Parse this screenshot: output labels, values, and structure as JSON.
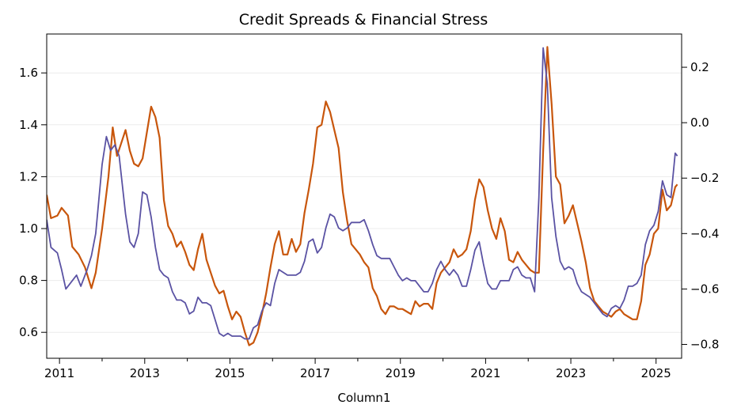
{
  "chart_data": {
    "type": "line",
    "title": "Credit Spreads & Financial Stress",
    "xlabel": "Column1",
    "ylabel": "",
    "y2label": "",
    "xlim": [
      2010.7,
      2025.6
    ],
    "ylim": [
      0.5,
      1.75
    ],
    "y2lim": [
      -0.85,
      0.32
    ],
    "x_ticks": [
      2011,
      2013,
      2015,
      2017,
      2019,
      2021,
      2023,
      2025
    ],
    "x_tick_labels": [
      "2011",
      "2013",
      "2015",
      "2017",
      "2019",
      "2021",
      "2023",
      "2025"
    ],
    "y_ticks": [
      0.6,
      0.8,
      1.0,
      1.2,
      1.4,
      1.6
    ],
    "y_tick_labels": [
      "0.6",
      "0.8",
      "1.0",
      "1.2",
      "1.4",
      "1.6"
    ],
    "y2_ticks": [
      -0.8,
      -0.6,
      -0.4,
      -0.2,
      0.0,
      0.2
    ],
    "y2_tick_labels": [
      "−0.8",
      "−0.6",
      "−0.4",
      "−0.2",
      "0.0",
      "0.2"
    ],
    "grid": "horizontal",
    "legend": "none",
    "series": [
      {
        "axis": "left",
        "color": "#c8560c",
        "points": [
          [
            2010.7,
            1.13
          ],
          [
            2010.8,
            1.04
          ],
          [
            2010.95,
            1.05
          ],
          [
            2011.05,
            1.08
          ],
          [
            2011.2,
            1.05
          ],
          [
            2011.3,
            0.93
          ],
          [
            2011.45,
            0.9
          ],
          [
            2011.6,
            0.85
          ],
          [
            2011.75,
            0.77
          ],
          [
            2011.85,
            0.83
          ],
          [
            2012.0,
            1.0
          ],
          [
            2012.15,
            1.2
          ],
          [
            2012.25,
            1.39
          ],
          [
            2012.35,
            1.28
          ],
          [
            2012.45,
            1.33
          ],
          [
            2012.55,
            1.38
          ],
          [
            2012.65,
            1.3
          ],
          [
            2012.75,
            1.25
          ],
          [
            2012.85,
            1.24
          ],
          [
            2012.95,
            1.27
          ],
          [
            2013.05,
            1.37
          ],
          [
            2013.15,
            1.47
          ],
          [
            2013.25,
            1.43
          ],
          [
            2013.35,
            1.35
          ],
          [
            2013.45,
            1.11
          ],
          [
            2013.55,
            1.01
          ],
          [
            2013.65,
            0.98
          ],
          [
            2013.75,
            0.93
          ],
          [
            2013.85,
            0.95
          ],
          [
            2013.95,
            0.91
          ],
          [
            2014.05,
            0.86
          ],
          [
            2014.15,
            0.84
          ],
          [
            2014.25,
            0.92
          ],
          [
            2014.35,
            0.98
          ],
          [
            2014.45,
            0.88
          ],
          [
            2014.55,
            0.83
          ],
          [
            2014.65,
            0.78
          ],
          [
            2014.75,
            0.75
          ],
          [
            2014.85,
            0.76
          ],
          [
            2014.95,
            0.7
          ],
          [
            2015.05,
            0.65
          ],
          [
            2015.15,
            0.68
          ],
          [
            2015.25,
            0.66
          ],
          [
            2015.35,
            0.6
          ],
          [
            2015.45,
            0.55
          ],
          [
            2015.55,
            0.56
          ],
          [
            2015.65,
            0.6
          ],
          [
            2015.75,
            0.67
          ],
          [
            2015.85,
            0.75
          ],
          [
            2015.95,
            0.85
          ],
          [
            2016.05,
            0.94
          ],
          [
            2016.15,
            0.99
          ],
          [
            2016.25,
            0.9
          ],
          [
            2016.35,
            0.9
          ],
          [
            2016.45,
            0.96
          ],
          [
            2016.55,
            0.91
          ],
          [
            2016.65,
            0.94
          ],
          [
            2016.75,
            1.06
          ],
          [
            2016.85,
            1.15
          ],
          [
            2016.95,
            1.25
          ],
          [
            2017.05,
            1.39
          ],
          [
            2017.15,
            1.4
          ],
          [
            2017.25,
            1.49
          ],
          [
            2017.35,
            1.45
          ],
          [
            2017.45,
            1.38
          ],
          [
            2017.55,
            1.31
          ],
          [
            2017.65,
            1.14
          ],
          [
            2017.75,
            1.03
          ],
          [
            2017.85,
            0.94
          ],
          [
            2017.95,
            0.92
          ],
          [
            2018.05,
            0.9
          ],
          [
            2018.15,
            0.87
          ],
          [
            2018.25,
            0.85
          ],
          [
            2018.35,
            0.77
          ],
          [
            2018.45,
            0.74
          ],
          [
            2018.55,
            0.69
          ],
          [
            2018.65,
            0.67
          ],
          [
            2018.75,
            0.7
          ],
          [
            2018.85,
            0.7
          ],
          [
            2018.95,
            0.69
          ],
          [
            2019.05,
            0.69
          ],
          [
            2019.15,
            0.68
          ],
          [
            2019.25,
            0.67
          ],
          [
            2019.35,
            0.72
          ],
          [
            2019.45,
            0.7
          ],
          [
            2019.55,
            0.71
          ],
          [
            2019.65,
            0.71
          ],
          [
            2019.75,
            0.69
          ],
          [
            2019.85,
            0.79
          ],
          [
            2019.95,
            0.83
          ],
          [
            2020.05,
            0.85
          ],
          [
            2020.15,
            0.87
          ],
          [
            2020.25,
            0.92
          ],
          [
            2020.35,
            0.89
          ],
          [
            2020.45,
            0.9
          ],
          [
            2020.55,
            0.92
          ],
          [
            2020.65,
            0.99
          ],
          [
            2020.75,
            1.11
          ],
          [
            2020.85,
            1.19
          ],
          [
            2020.95,
            1.16
          ],
          [
            2021.05,
            1.07
          ],
          [
            2021.15,
            1.0
          ],
          [
            2021.25,
            0.96
          ],
          [
            2021.35,
            1.04
          ],
          [
            2021.45,
            0.99
          ],
          [
            2021.55,
            0.88
          ],
          [
            2021.65,
            0.87
          ],
          [
            2021.75,
            0.91
          ],
          [
            2021.85,
            0.88
          ],
          [
            2021.95,
            0.86
          ],
          [
            2022.05,
            0.84
          ],
          [
            2022.15,
            0.83
          ],
          [
            2022.25,
            0.83
          ],
          [
            2022.35,
            1.3
          ],
          [
            2022.45,
            1.7
          ],
          [
            2022.55,
            1.48
          ],
          [
            2022.65,
            1.2
          ],
          [
            2022.75,
            1.17
          ],
          [
            2022.85,
            1.02
          ],
          [
            2022.95,
            1.05
          ],
          [
            2023.05,
            1.09
          ],
          [
            2023.15,
            1.02
          ],
          [
            2023.25,
            0.95
          ],
          [
            2023.35,
            0.87
          ],
          [
            2023.45,
            0.77
          ],
          [
            2023.55,
            0.72
          ],
          [
            2023.65,
            0.7
          ],
          [
            2023.75,
            0.68
          ],
          [
            2023.85,
            0.67
          ],
          [
            2023.95,
            0.66
          ],
          [
            2024.05,
            0.68
          ],
          [
            2024.15,
            0.69
          ],
          [
            2024.25,
            0.67
          ],
          [
            2024.35,
            0.66
          ],
          [
            2024.45,
            0.65
          ],
          [
            2024.55,
            0.65
          ],
          [
            2024.65,
            0.72
          ],
          [
            2024.75,
            0.86
          ],
          [
            2024.85,
            0.9
          ],
          [
            2024.95,
            0.98
          ],
          [
            2025.05,
            1.0
          ],
          [
            2025.15,
            1.15
          ],
          [
            2025.25,
            1.07
          ],
          [
            2025.35,
            1.09
          ],
          [
            2025.45,
            1.16
          ],
          [
            2025.5,
            1.17
          ]
        ]
      },
      {
        "axis": "right",
        "color": "#5a52a3",
        "points": [
          [
            2010.7,
            -0.35
          ],
          [
            2010.8,
            -0.45
          ],
          [
            2010.95,
            -0.47
          ],
          [
            2011.05,
            -0.53
          ],
          [
            2011.15,
            -0.6
          ],
          [
            2011.3,
            -0.57
          ],
          [
            2011.4,
            -0.55
          ],
          [
            2011.5,
            -0.59
          ],
          [
            2011.65,
            -0.53
          ],
          [
            2011.75,
            -0.48
          ],
          [
            2011.85,
            -0.4
          ],
          [
            2012.0,
            -0.15
          ],
          [
            2012.1,
            -0.05
          ],
          [
            2012.2,
            -0.1
          ],
          [
            2012.3,
            -0.08
          ],
          [
            2012.4,
            -0.12
          ],
          [
            2012.55,
            -0.33
          ],
          [
            2012.65,
            -0.43
          ],
          [
            2012.75,
            -0.45
          ],
          [
            2012.85,
            -0.4
          ],
          [
            2012.95,
            -0.25
          ],
          [
            2013.05,
            -0.26
          ],
          [
            2013.15,
            -0.34
          ],
          [
            2013.25,
            -0.45
          ],
          [
            2013.35,
            -0.53
          ],
          [
            2013.45,
            -0.55
          ],
          [
            2013.55,
            -0.56
          ],
          [
            2013.65,
            -0.61
          ],
          [
            2013.75,
            -0.64
          ],
          [
            2013.85,
            -0.64
          ],
          [
            2013.95,
            -0.65
          ],
          [
            2014.05,
            -0.69
          ],
          [
            2014.15,
            -0.68
          ],
          [
            2014.25,
            -0.63
          ],
          [
            2014.35,
            -0.65
          ],
          [
            2014.45,
            -0.65
          ],
          [
            2014.55,
            -0.66
          ],
          [
            2014.65,
            -0.71
          ],
          [
            2014.75,
            -0.76
          ],
          [
            2014.85,
            -0.77
          ],
          [
            2014.95,
            -0.76
          ],
          [
            2015.05,
            -0.77
          ],
          [
            2015.15,
            -0.77
          ],
          [
            2015.25,
            -0.77
          ],
          [
            2015.35,
            -0.78
          ],
          [
            2015.45,
            -0.78
          ],
          [
            2015.55,
            -0.74
          ],
          [
            2015.65,
            -0.73
          ],
          [
            2015.75,
            -0.68
          ],
          [
            2015.85,
            -0.65
          ],
          [
            2015.95,
            -0.66
          ],
          [
            2016.05,
            -0.58
          ],
          [
            2016.15,
            -0.53
          ],
          [
            2016.25,
            -0.54
          ],
          [
            2016.35,
            -0.55
          ],
          [
            2016.45,
            -0.55
          ],
          [
            2016.55,
            -0.55
          ],
          [
            2016.65,
            -0.54
          ],
          [
            2016.75,
            -0.5
          ],
          [
            2016.85,
            -0.43
          ],
          [
            2016.95,
            -0.42
          ],
          [
            2017.05,
            -0.47
          ],
          [
            2017.15,
            -0.45
          ],
          [
            2017.25,
            -0.38
          ],
          [
            2017.35,
            -0.33
          ],
          [
            2017.45,
            -0.34
          ],
          [
            2017.55,
            -0.38
          ],
          [
            2017.65,
            -0.39
          ],
          [
            2017.75,
            -0.38
          ],
          [
            2017.85,
            -0.36
          ],
          [
            2017.95,
            -0.36
          ],
          [
            2018.05,
            -0.36
          ],
          [
            2018.15,
            -0.35
          ],
          [
            2018.25,
            -0.39
          ],
          [
            2018.35,
            -0.44
          ],
          [
            2018.45,
            -0.48
          ],
          [
            2018.55,
            -0.49
          ],
          [
            2018.65,
            -0.49
          ],
          [
            2018.75,
            -0.49
          ],
          [
            2018.85,
            -0.52
          ],
          [
            2018.95,
            -0.55
          ],
          [
            2019.05,
            -0.57
          ],
          [
            2019.15,
            -0.56
          ],
          [
            2019.25,
            -0.57
          ],
          [
            2019.35,
            -0.57
          ],
          [
            2019.45,
            -0.59
          ],
          [
            2019.55,
            -0.61
          ],
          [
            2019.65,
            -0.61
          ],
          [
            2019.75,
            -0.58
          ],
          [
            2019.85,
            -0.53
          ],
          [
            2019.95,
            -0.5
          ],
          [
            2020.05,
            -0.53
          ],
          [
            2020.15,
            -0.55
          ],
          [
            2020.25,
            -0.53
          ],
          [
            2020.35,
            -0.55
          ],
          [
            2020.45,
            -0.59
          ],
          [
            2020.55,
            -0.59
          ],
          [
            2020.65,
            -0.53
          ],
          [
            2020.75,
            -0.46
          ],
          [
            2020.85,
            -0.43
          ],
          [
            2020.95,
            -0.51
          ],
          [
            2021.05,
            -0.58
          ],
          [
            2021.15,
            -0.6
          ],
          [
            2021.25,
            -0.6
          ],
          [
            2021.35,
            -0.57
          ],
          [
            2021.45,
            -0.57
          ],
          [
            2021.55,
            -0.57
          ],
          [
            2021.65,
            -0.53
          ],
          [
            2021.75,
            -0.52
          ],
          [
            2021.85,
            -0.55
          ],
          [
            2021.95,
            -0.56
          ],
          [
            2022.05,
            -0.56
          ],
          [
            2022.15,
            -0.61
          ],
          [
            2022.25,
            -0.27
          ],
          [
            2022.35,
            0.27
          ],
          [
            2022.45,
            0.14
          ],
          [
            2022.55,
            -0.27
          ],
          [
            2022.65,
            -0.41
          ],
          [
            2022.75,
            -0.5
          ],
          [
            2022.85,
            -0.53
          ],
          [
            2022.95,
            -0.52
          ],
          [
            2023.05,
            -0.53
          ],
          [
            2023.15,
            -0.58
          ],
          [
            2023.25,
            -0.61
          ],
          [
            2023.35,
            -0.62
          ],
          [
            2023.45,
            -0.63
          ],
          [
            2023.55,
            -0.65
          ],
          [
            2023.65,
            -0.67
          ],
          [
            2023.75,
            -0.69
          ],
          [
            2023.85,
            -0.7
          ],
          [
            2023.95,
            -0.67
          ],
          [
            2024.05,
            -0.66
          ],
          [
            2024.15,
            -0.67
          ],
          [
            2024.25,
            -0.64
          ],
          [
            2024.35,
            -0.59
          ],
          [
            2024.45,
            -0.59
          ],
          [
            2024.55,
            -0.58
          ],
          [
            2024.65,
            -0.55
          ],
          [
            2024.75,
            -0.44
          ],
          [
            2024.85,
            -0.39
          ],
          [
            2024.95,
            -0.37
          ],
          [
            2025.05,
            -0.32
          ],
          [
            2025.15,
            -0.21
          ],
          [
            2025.25,
            -0.26
          ],
          [
            2025.35,
            -0.27
          ],
          [
            2025.45,
            -0.11
          ],
          [
            2025.5,
            -0.12
          ]
        ]
      }
    ]
  }
}
